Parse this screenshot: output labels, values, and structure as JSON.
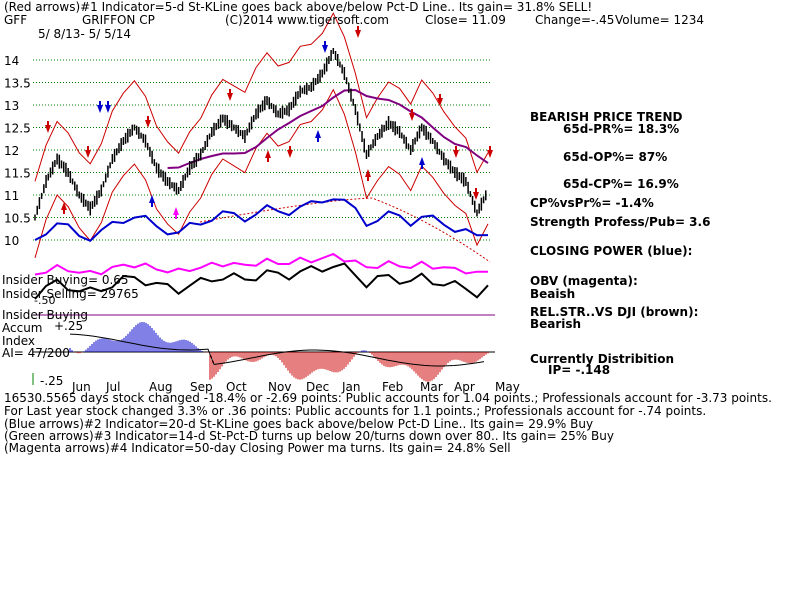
{
  "header": {
    "line1": "(Red arrows)#1 Indicator=5-d St-KLine goes back above/below Pct-D Line.. Its gain= 31.8% SELL!",
    "ticker": "GFF",
    "company": "GRIFFON CP",
    "copyright": "(C)2014 www.tigersoft.com",
    "close": "Close=  11.09",
    "change": "Change=-.45",
    "volume": "Volume= 1234",
    "date_range": "5/ 8/13- 5/ 5/14"
  },
  "right_panel": {
    "trend_title": "BEARISH PRICE TREND",
    "pr": "65d-PR%= 18.3%",
    "op": "65d-OP%= 87%",
    "cp": "65d-CP%= 16.9%",
    "cpvspr": "CP%vsPr%= -1.4%",
    "strength": "Strength Profess/Pub= 3.6",
    "closing_power": "CLOSING POWER (blue):",
    "obv_label": "OBV (magenta):",
    "obv_value": "Beaish",
    "relstr_label": "REL.STR..VS DJI (brown):",
    "relstr_value": "Bearish",
    "distribution": "Currently Distribition",
    "ip": "IP= -.148"
  },
  "left_labels": {
    "insider_buying1": "Insider Buying= 0.65",
    "insider_selling": "Insider Selling= 29765",
    "insider_buying2": "Insider Buying",
    "accum_index1": "Accum",
    "accum_index2": "Index",
    "plus25": "+.25",
    "ai": "AI= 47/200",
    "minus25": "-.25",
    "minus50": "-.50"
  },
  "footer": {
    "line1": "16530.5565 days stock changed -18.4% or -2.69 points:  Public accounts for  1.04 points.;  Professionals account for -3.73 points.",
    "line2": "For Last year stock changed  3.3% or  .36 points:  Public accounts for  1.1 points.;  Professionals account for -.74 points.",
    "line3": "(Blue arrows)#2 Indicator=20-d St-KLine goes back above/below Pct-D Line.. Its gain= 29.9% Buy",
    "line4": "(Green arrows)#3 Indicator=14-d St-Pct-D turns up below 20/turns down over 80.. Its gain= 25% Buy",
    "line5": "(Magenta arrows)#4 Indicator=50-day Closing Power ma turns. Its gain= 24.8% Sell"
  },
  "colors": {
    "price": "#000000",
    "bands": "#cc0000",
    "ma": "#800080",
    "closing_power": "#0000cc",
    "obv": "#ff00ff",
    "grid": "#008000",
    "accum_pos": "#0000cc",
    "accum_neg": "#cc0000"
  },
  "chart_data": {
    "type": "line",
    "yticks": [
      "14",
      "13.5",
      "13",
      "12.5",
      "12",
      "11.5",
      "11",
      "10.5",
      "10"
    ],
    "ylim": [
      9.75,
      14.5
    ],
    "months": [
      "Jun",
      "Jul",
      "Aug",
      "Sep",
      "Oct",
      "Nov",
      "Dec",
      "Jan",
      "Feb",
      "Mar",
      "Apr",
      "May"
    ],
    "series": [
      {
        "values": [
          10.5,
          11.3,
          11.8,
          11.5,
          11.0,
          10.7,
          11.1,
          11.8,
          12.2,
          12.5,
          12.2,
          11.6,
          11.3,
          11.1,
          11.6,
          11.9,
          12.4,
          12.7,
          12.5,
          12.3,
          12.8,
          13.1,
          12.8,
          12.9,
          13.3,
          13.4,
          13.7,
          14.2,
          13.7,
          12.9,
          11.9,
          12.3,
          12.6,
          12.4,
          12.0,
          12.5,
          12.2,
          11.8,
          11.5,
          11.3,
          10.6,
          11.09
        ]
      }
    ]
  }
}
